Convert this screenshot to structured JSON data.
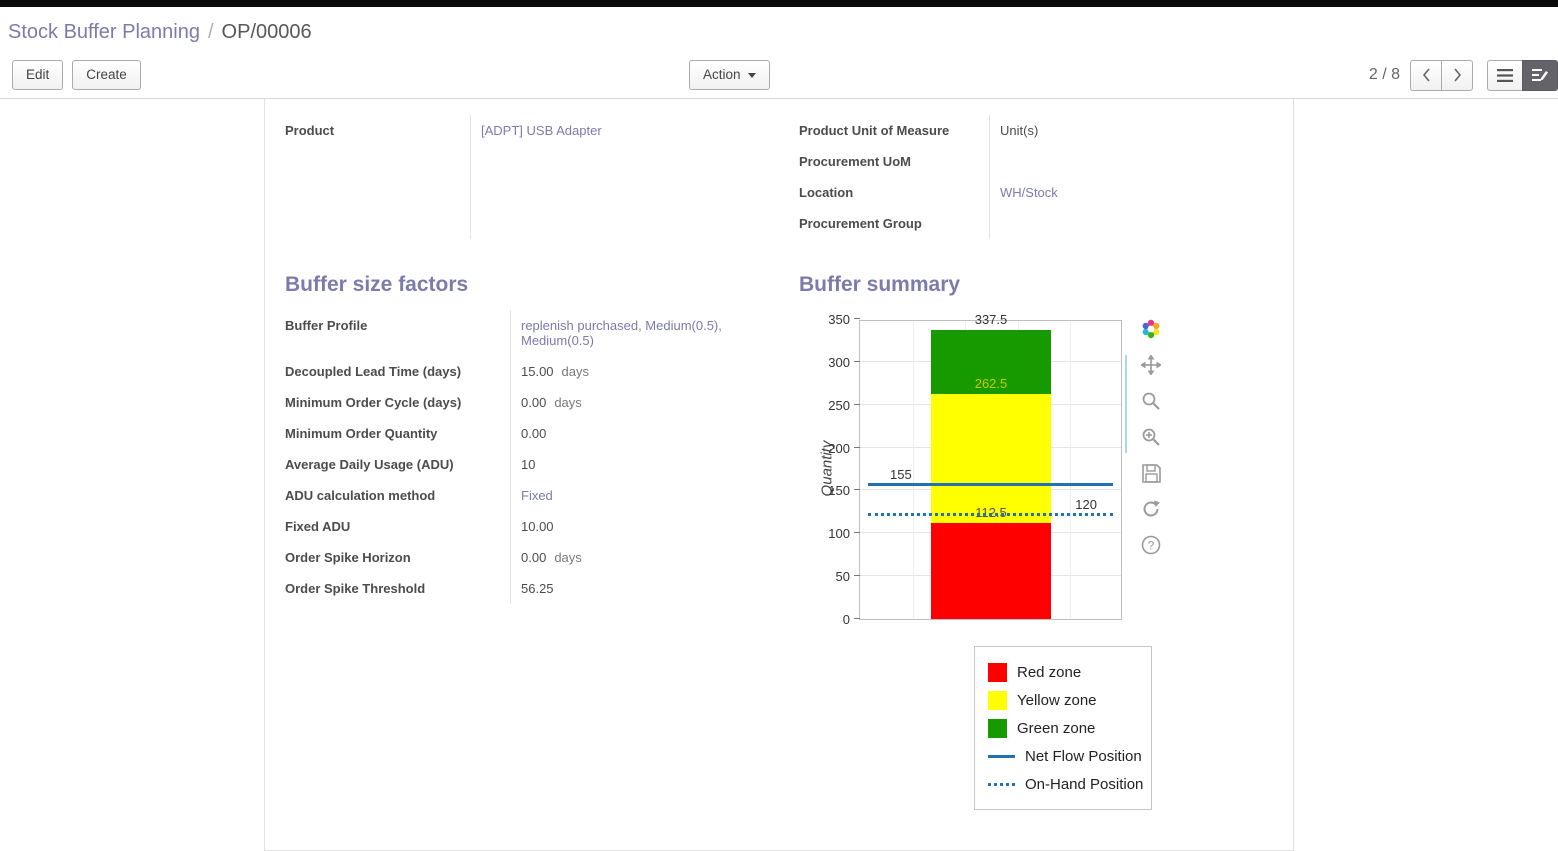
{
  "breadcrumb": {
    "parent": "Stock Buffer Planning",
    "separator": "/",
    "current": "OP/00006"
  },
  "control_panel": {
    "edit": "Edit",
    "create": "Create",
    "action": "Action",
    "pager": "2 / 8"
  },
  "form": {
    "product": {
      "label": "Product",
      "value": "[ADPT] USB Adapter"
    },
    "right_fields": [
      {
        "label": "Product Unit of Measure",
        "value": "Unit(s)"
      },
      {
        "label": "Procurement UoM",
        "value": ""
      },
      {
        "label": "Location",
        "value": "WH/Stock"
      },
      {
        "label": "Procurement Group",
        "value": ""
      }
    ],
    "buffer_size": {
      "title": "Buffer size factors",
      "rows": [
        {
          "label": "Buffer Profile",
          "value": "replenish purchased, Medium(0.5), Medium(0.5)",
          "suffix": ""
        },
        {
          "label": "Decoupled Lead Time (days)",
          "value": "15.00",
          "suffix": "days"
        },
        {
          "label": "Minimum Order Cycle (days)",
          "value": "0.00",
          "suffix": "days"
        },
        {
          "label": "Minimum Order Quantity",
          "value": "0.00",
          "suffix": ""
        },
        {
          "label": "Average Daily Usage (ADU)",
          "value": "10",
          "suffix": ""
        },
        {
          "label": "ADU calculation method",
          "value": "Fixed",
          "suffix": ""
        },
        {
          "label": "Fixed ADU",
          "value": "10.00",
          "suffix": ""
        },
        {
          "label": "Order Spike Horizon",
          "value": "0.00",
          "suffix": "days"
        },
        {
          "label": "Order Spike Threshold",
          "value": "56.25",
          "suffix": ""
        }
      ]
    },
    "buffer_summary_title": "Buffer summary"
  },
  "chart_data": {
    "type": "bar",
    "title": "Buffer summary",
    "ylabel": "Quantity",
    "ylim": [
      0,
      350
    ],
    "ytick_step": 50,
    "zones": [
      {
        "name": "Red zone",
        "from": 0,
        "to": 112.5,
        "color": "#fe0000",
        "boundary_label": "112.5",
        "label_color": "#555555"
      },
      {
        "name": "Yellow zone",
        "from": 112.5,
        "to": 262.5,
        "color": "#ffff00",
        "boundary_label": "262.5",
        "label_color": "#c9c800"
      },
      {
        "name": "Green zone",
        "from": 262.5,
        "to": 337.5,
        "color": "#179a00",
        "boundary_label": "337.5",
        "label_color": "#333333"
      }
    ],
    "lines": [
      {
        "name": "Net Flow Position",
        "value": 155,
        "label": "155",
        "style": "solid",
        "side": "left",
        "color": "#2271b2"
      },
      {
        "name": "On-Hand Position",
        "value": 120,
        "label": "120",
        "style": "dotted",
        "side": "right",
        "color": "#2271b2"
      }
    ],
    "legend": [
      {
        "label": "Red zone"
      },
      {
        "label": "Yellow zone"
      },
      {
        "label": "Green zone"
      },
      {
        "label": "Net Flow Position"
      },
      {
        "label": "On-Hand Position"
      }
    ],
    "toolbar_icons": [
      "palette-pinwheel",
      "pan",
      "zoom",
      "zoom-in",
      "save",
      "refresh",
      "help"
    ]
  }
}
